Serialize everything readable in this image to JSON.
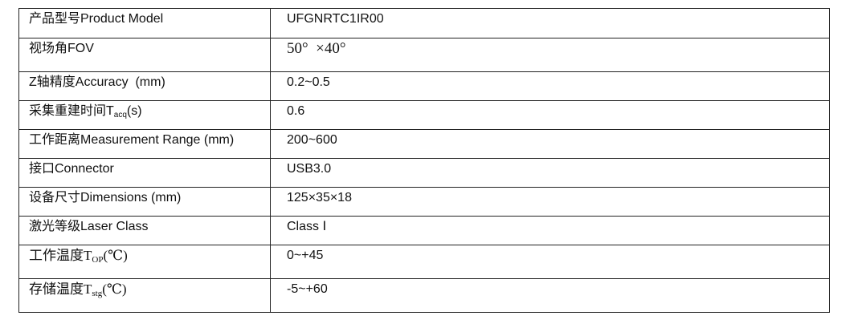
{
  "rows": [
    {
      "label": "产品型号Product Model",
      "value": "UFGNRTC1IR00"
    },
    {
      "label": "视场角FOV",
      "value": "50°  ×40°"
    },
    {
      "label": "Z轴精度Accuracy  (mm)",
      "value": "0.2~0.5"
    },
    {
      "label": "采集重建时间T",
      "sub": "acq",
      "suffix": "(s)",
      "value": "0.6"
    },
    {
      "label": "工作距离Measurement Range (mm)",
      "value": "200~600"
    },
    {
      "label": "接口Connector",
      "value": "USB3.0"
    },
    {
      "label": "设备尺寸Dimensions (mm)",
      "value": "125×35×18"
    },
    {
      "label": "激光等级Laser Class",
      "value": "Class Ⅰ"
    },
    {
      "label": "工作温度T",
      "sub": "OP",
      "suffix": "(℃)",
      "value": "0~+45"
    },
    {
      "label": "存储温度T",
      "sub": "stg",
      "suffix": "(℃)",
      "value": "-5~+60"
    }
  ]
}
